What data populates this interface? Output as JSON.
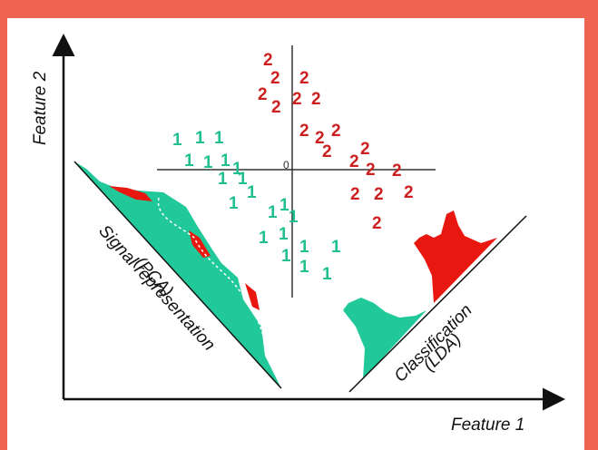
{
  "axes": {
    "x_label": "Feature 1",
    "y_label": "Feature 2",
    "origin_label": "0"
  },
  "projections": {
    "pca": {
      "line1": "Signal representation",
      "line2": "(PCA)"
    },
    "lda": {
      "line1": "Classification",
      "line2": "(LDA)"
    }
  },
  "classes": [
    {
      "label": "1",
      "color": "#1fbf8f"
    },
    {
      "label": "2",
      "color": "#cc1f1f"
    }
  ],
  "colors": {
    "border": "#ee6450",
    "class1": "#1fbf8f",
    "class2": "#cc1f1f",
    "density_fill_1": "#21c99a",
    "density_fill_2": "#e8170f"
  }
}
